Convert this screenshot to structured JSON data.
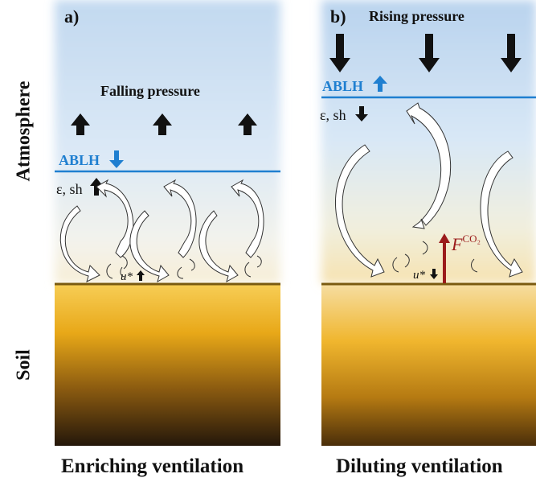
{
  "side_labels": {
    "atmosphere": "Atmosphere",
    "soil": "Soil"
  },
  "panel_a": {
    "label": "a)",
    "pressure_text": "Falling pressure",
    "ablh_label": "ABLH",
    "ablh_arrow": "down",
    "eps_sh_label": "ε, sh",
    "eps_sh_arrow": "up",
    "ustar_label": "u*",
    "ustar_arrow": "up",
    "caption": "Enriching ventilation"
  },
  "panel_b": {
    "label": "b)",
    "pressure_text": "Rising pressure",
    "ablh_label": "ABLH",
    "ablh_arrow": "up",
    "eps_sh_label": "ε, sh",
    "eps_sh_arrow": "down",
    "ustar_label": "u*",
    "ustar_arrow": "down",
    "flux_label": "F",
    "flux_superscript": "CO₂",
    "caption": "Diluting ventilation"
  },
  "colors": {
    "ablh_line": "#1f7fd0",
    "ground_line": "#7a5a10",
    "flux_arrow": "#9b1b1b",
    "sky_top": "#b8d4ee",
    "soil_top": "#f5c23a",
    "soil_bottom": "#2a1a0a"
  }
}
